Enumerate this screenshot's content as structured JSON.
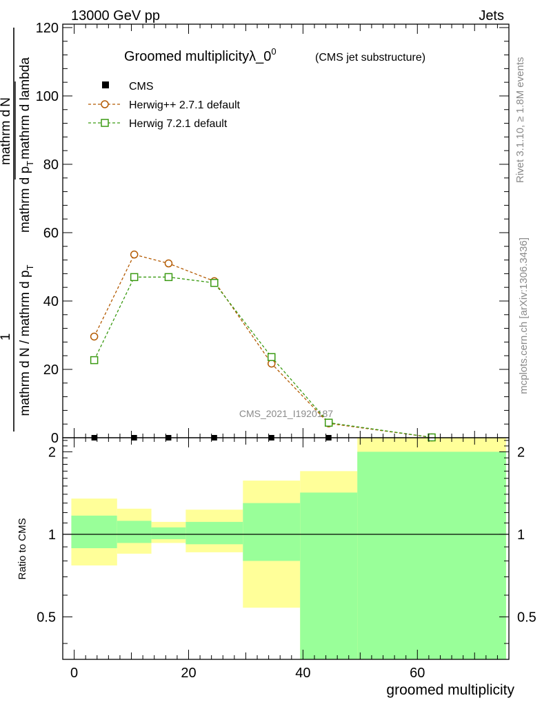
{
  "header": {
    "energy_label": "13000 GeV pp",
    "category_label": "Jets"
  },
  "chart_data": {
    "type": "line",
    "title": "Groomed multiplicityλ_0",
    "title_superscript": "0",
    "subtitle": "(CMS jet substructure)",
    "analysis_id": "CMS_2021_I1920187",
    "side_label_top": "Rivet 3.1.10, ≥ 1.8M events",
    "side_label_bottom": "mcplots.cern.ch [arXiv:1306.3436]",
    "ylabel_main_parts": {
      "num": "1",
      "den": "mathrm d N / mathrm d p",
      "den_sub": "T",
      "right_num": "mathrm d",
      "right_num2": "N",
      "right_den": "mathrm d p",
      "right_den_sub": "T",
      "right_den2": "mathrm d lambda"
    },
    "xlabel": "groomed multiplicity",
    "ylabel_ratio": "Ratio to CMS",
    "xlim": [
      -2,
      76
    ],
    "ylim_main": [
      0,
      121
    ],
    "yticks_main": [
      0,
      20,
      40,
      60,
      80,
      100,
      120
    ],
    "ratio_ylim": [
      0.35,
      2.25
    ],
    "ratio_yticks": [
      0.5,
      1,
      2
    ],
    "xticks": [
      0,
      20,
      40,
      60
    ],
    "x": [
      3.5,
      10.5,
      16.5,
      24.5,
      34.5,
      44.5,
      62.5
    ],
    "bin_edges": [
      -0.5,
      7.5,
      13.5,
      19.5,
      29.5,
      39.5,
      49.5,
      75.5
    ],
    "series": [
      {
        "name": "CMS",
        "marker": "square-filled",
        "color": "#000000",
        "values": [
          0,
          0,
          0,
          0,
          0,
          0,
          0
        ]
      },
      {
        "name": "Herwig++ 2.7.1 default",
        "marker": "circle-open",
        "color": "#b35900",
        "values": [
          29.6,
          53.6,
          51.0,
          45.8,
          21.7,
          4.2,
          0.1
        ]
      },
      {
        "name": "Herwig 7.2.1 default",
        "marker": "square-open",
        "color": "#3a9a12",
        "values": [
          22.7,
          47.0,
          47.0,
          45.3,
          23.6,
          4.4,
          0.1
        ]
      }
    ],
    "ratio_bands": {
      "green_color": "#99ff99",
      "yellow_color": "#ffff99",
      "green_low": [
        0.89,
        0.93,
        0.96,
        0.92,
        0.8,
        0.35,
        0.35
      ],
      "green_high": [
        1.17,
        1.12,
        1.06,
        1.11,
        1.3,
        1.42,
        2.0
      ],
      "yellow_low": [
        0.77,
        0.85,
        0.93,
        0.86,
        0.54,
        0.35,
        0.35
      ],
      "yellow_high": [
        1.35,
        1.24,
        1.11,
        1.23,
        1.57,
        1.7,
        2.25
      ]
    }
  }
}
